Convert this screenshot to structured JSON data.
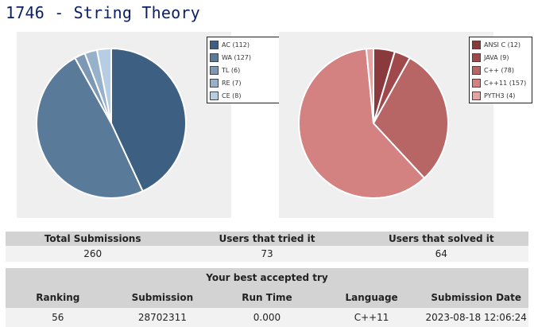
{
  "page": {
    "title": "1746 - String Theory"
  },
  "verdict_chart": {
    "legend": [
      {
        "label": "AC (112)",
        "color": "#3d5f82"
      },
      {
        "label": "WA (127)",
        "color": "#5a7a9a"
      },
      {
        "label": "TL (6)",
        "color": "#7c98b4"
      },
      {
        "label": "RE (7)",
        "color": "#97b1cb"
      },
      {
        "label": "CE (8)",
        "color": "#b6cde3"
      }
    ]
  },
  "language_chart": {
    "legend": [
      {
        "label": "ANSI C (12)",
        "color": "#8a3a3d"
      },
      {
        "label": "JAVA (9)",
        "color": "#a0494c"
      },
      {
        "label": "C++ (78)",
        "color": "#b76565"
      },
      {
        "label": "C++11 (157)",
        "color": "#d38181"
      },
      {
        "label": "PYTH3 (4)",
        "color": "#e6a3a3"
      }
    ]
  },
  "chart_data": [
    {
      "type": "pie",
      "categories": [
        "AC",
        "WA",
        "TL",
        "RE",
        "CE"
      ],
      "values": [
        112,
        127,
        6,
        7,
        8
      ],
      "colors": [
        "#3d5f82",
        "#5a7a9a",
        "#7c98b4",
        "#97b1cb",
        "#b6cde3"
      ],
      "legend_position": "top-right"
    },
    {
      "type": "pie",
      "categories": [
        "ANSI C",
        "JAVA",
        "C++",
        "C++11",
        "PYTH3"
      ],
      "values": [
        12,
        9,
        78,
        157,
        4
      ],
      "colors": [
        "#8a3a3d",
        "#a0494c",
        "#b76565",
        "#d38181",
        "#e6a3a3"
      ],
      "legend_position": "top-right"
    }
  ],
  "stats": {
    "headers": [
      "Total Submissions",
      "Users that tried it",
      "Users that solved it"
    ],
    "values": [
      "260",
      "73",
      "64"
    ]
  },
  "best_try": {
    "title": "Your best accepted try",
    "headers": [
      "Ranking",
      "Submission",
      "Run Time",
      "Language",
      "Submission Date"
    ],
    "values": [
      "56",
      "28702311",
      "0.000",
      "C++11",
      "2023-08-18 12:06:24"
    ]
  }
}
